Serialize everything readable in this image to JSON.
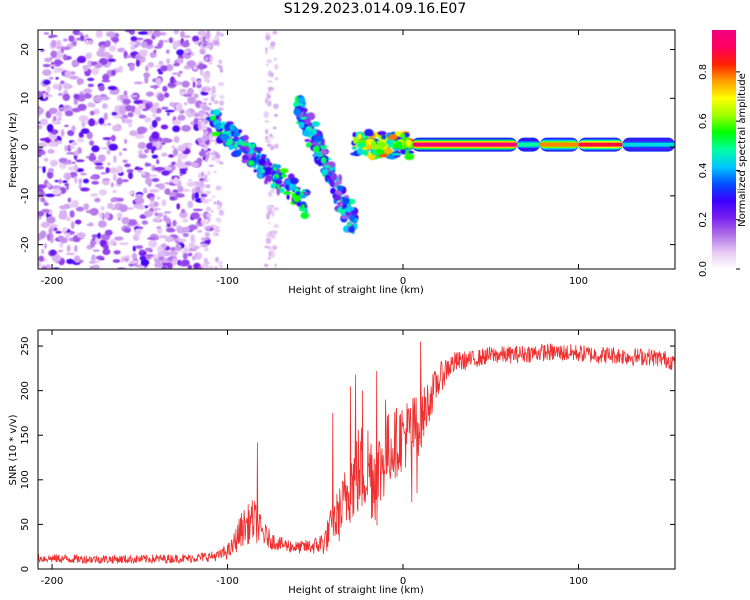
{
  "title": "S129.2023.014.09.16.E07",
  "chart_data": [
    {
      "type": "heatmap",
      "title": "S129.2023.014.09.16.E07",
      "xlabel": "Height of straight line (km)",
      "ylabel": "Frequency (Hz)",
      "xlim": [
        -208,
        155
      ],
      "ylim": [
        -25,
        24
      ],
      "xticks": [
        -200,
        -100,
        0,
        100
      ],
      "xtick_labels": [
        "-200",
        "-100",
        "0",
        "100"
      ],
      "yticks": [
        -20,
        -10,
        0,
        10,
        20
      ],
      "ytick_labels": [
        "-20",
        "-10",
        "0",
        "10",
        "20"
      ],
      "colorbar": {
        "label": "Normalized spectral amplitude",
        "range": [
          0.0,
          0.97
        ],
        "ticks": [
          0.0,
          0.2,
          0.4,
          0.6,
          0.8
        ],
        "tick_labels": [
          "0.0",
          "0.2",
          "0.4",
          "0.6",
          "0.8"
        ],
        "colormap": [
          "#ffffff",
          "#e6c8f5",
          "#b070e8",
          "#7a20f0",
          "#3a00ff",
          "#0050ff",
          "#00c8ff",
          "#00ffa0",
          "#00ff00",
          "#a0ff00",
          "#ffff00",
          "#ffa000",
          "#ff2000",
          "#ff0060",
          "#f00080"
        ]
      },
      "features": [
        {
          "name": "scattered-noise",
          "x_range": [
            -208,
            -110
          ],
          "y_range": [
            -25,
            24
          ],
          "amplitude": 0.3
        },
        {
          "name": "sparse-noise",
          "x_range": [
            -78,
            -72
          ],
          "y_range": [
            -25,
            24
          ],
          "amplitude": 0.15
        },
        {
          "name": "chirp-upper",
          "x_start": -60,
          "y_start": 9,
          "x_end": -28,
          "y_end": -16,
          "amplitude": 0.4
        },
        {
          "name": "chirp-lower",
          "x_start": -110,
          "y_start": 6,
          "x_end": -55,
          "y_end": -12,
          "amplitude": 0.45
        },
        {
          "name": "carrier-transition",
          "x_range": [
            -28,
            5
          ],
          "y_center": 0.5,
          "amplitude": 0.6
        },
        {
          "name": "carrier",
          "x_range": [
            5,
            155
          ],
          "y_center": 0.5,
          "amplitude": 0.95
        }
      ],
      "carrier_bands": [
        {
          "from": 5,
          "to": 65,
          "level": 0.97
        },
        {
          "from": 65,
          "to": 78,
          "level": 0.5
        },
        {
          "from": 78,
          "to": 100,
          "level": 0.8
        },
        {
          "from": 100,
          "to": 125,
          "level": 0.9
        },
        {
          "from": 125,
          "to": 155,
          "level": 0.45
        }
      ]
    },
    {
      "type": "line",
      "xlabel": "Height of straight line (km)",
      "ylabel": "SNR (10 * v/v)",
      "xlim": [
        -208,
        155
      ],
      "ylim": [
        0,
        268
      ],
      "xticks": [
        -200,
        -100,
        0,
        100
      ],
      "xtick_labels": [
        "-200",
        "-100",
        "0",
        "100"
      ],
      "yticks": [
        0,
        50,
        100,
        150,
        200,
        250
      ],
      "ytick_labels": [
        "0",
        "50",
        "100",
        "150",
        "200",
        "250"
      ],
      "color": "#ee3030",
      "series": [
        {
          "name": "SNR",
          "x": [
            -208,
            -180,
            -150,
            -120,
            -105,
            -98,
            -92,
            -85,
            -80,
            -75,
            -70,
            -65,
            -60,
            -55,
            -50,
            -45,
            -40,
            -37,
            -35,
            -30,
            -25,
            -20,
            -15,
            -10,
            -5,
            0,
            5,
            10,
            15,
            20,
            25,
            30,
            40,
            50,
            60,
            80,
            100,
            110,
            120,
            130,
            140,
            150,
            155
          ],
          "y": [
            12,
            11,
            11,
            12,
            15,
            22,
            45,
            55,
            40,
            32,
            28,
            26,
            24,
            25,
            26,
            30,
            50,
            60,
            65,
            95,
            110,
            115,
            100,
            130,
            140,
            150,
            155,
            165,
            190,
            210,
            225,
            232,
            235,
            240,
            240,
            243,
            242,
            240,
            240,
            238,
            238,
            235,
            232
          ],
          "noise_amp": [
            5,
            5,
            5,
            5,
            6,
            10,
            20,
            25,
            15,
            10,
            8,
            8,
            7,
            8,
            10,
            15,
            25,
            30,
            35,
            45,
            55,
            55,
            55,
            45,
            40,
            40,
            40,
            35,
            25,
            18,
            15,
            12,
            10,
            10,
            10,
            10,
            10,
            10,
            10,
            10,
            10,
            10,
            10
          ],
          "spikes": [
            [
              -83,
              142
            ],
            [
              -40,
              175
            ],
            [
              -30,
              205
            ],
            [
              -27,
              218
            ],
            [
              -23,
              200
            ],
            [
              -15,
              222
            ],
            [
              -10,
              190
            ],
            [
              10,
              255
            ],
            [
              5,
              75
            ],
            [
              8,
              85
            ]
          ]
        }
      ]
    }
  ]
}
